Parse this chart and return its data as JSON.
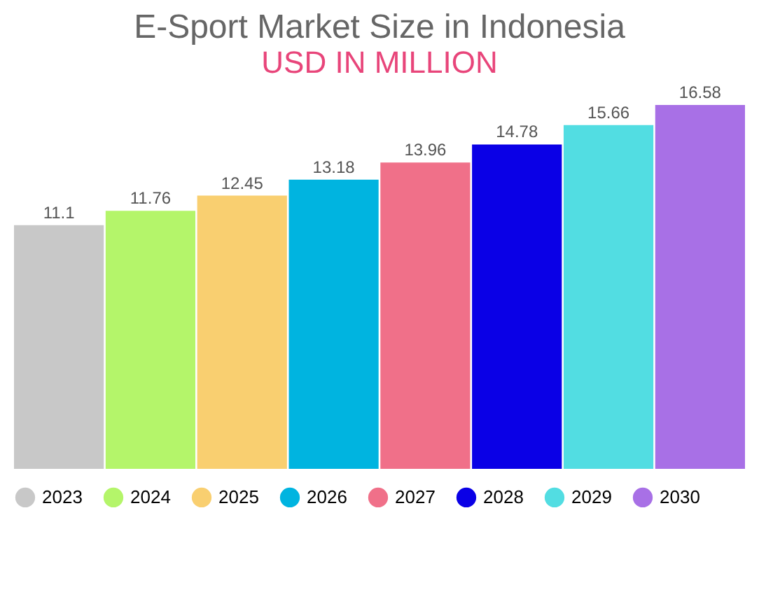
{
  "chart_data": {
    "type": "bar",
    "title": "E-Sport Market Size in Indonesia",
    "subtitle": "USD IN MILLION",
    "categories": [
      null,
      null,
      null,
      null,
      null,
      null,
      null,
      null
    ],
    "series": [
      {
        "name": "2023",
        "color": "#c8c8c8",
        "values": [
          11.1,
          null,
          null,
          null,
          null,
          null,
          null,
          null
        ]
      },
      {
        "name": "2024",
        "color": "#b4f56a",
        "values": [
          null,
          11.76,
          null,
          null,
          null,
          null,
          null,
          null
        ]
      },
      {
        "name": "2025",
        "color": "#f9cf70",
        "values": [
          null,
          null,
          12.45,
          null,
          null,
          null,
          null,
          null
        ]
      },
      {
        "name": "2026",
        "color": "#00b4e0",
        "values": [
          null,
          null,
          null,
          13.18,
          null,
          null,
          null,
          null
        ]
      },
      {
        "name": "2027",
        "color": "#f07089",
        "values": [
          null,
          null,
          null,
          null,
          13.96,
          null,
          null,
          null
        ]
      },
      {
        "name": "2028",
        "color": "#0a00e6",
        "values": [
          null,
          null,
          null,
          null,
          null,
          14.78,
          null,
          null
        ]
      },
      {
        "name": "2029",
        "color": "#52dde2",
        "values": [
          null,
          null,
          null,
          null,
          null,
          null,
          15.66,
          null
        ]
      },
      {
        "name": "2030",
        "color": "#a870e6",
        "values": [
          null,
          null,
          null,
          null,
          null,
          null,
          null,
          16.58
        ]
      }
    ],
    "data_labels": true,
    "stacked": true,
    "legend": "bottom",
    "tick_labels": false
  }
}
